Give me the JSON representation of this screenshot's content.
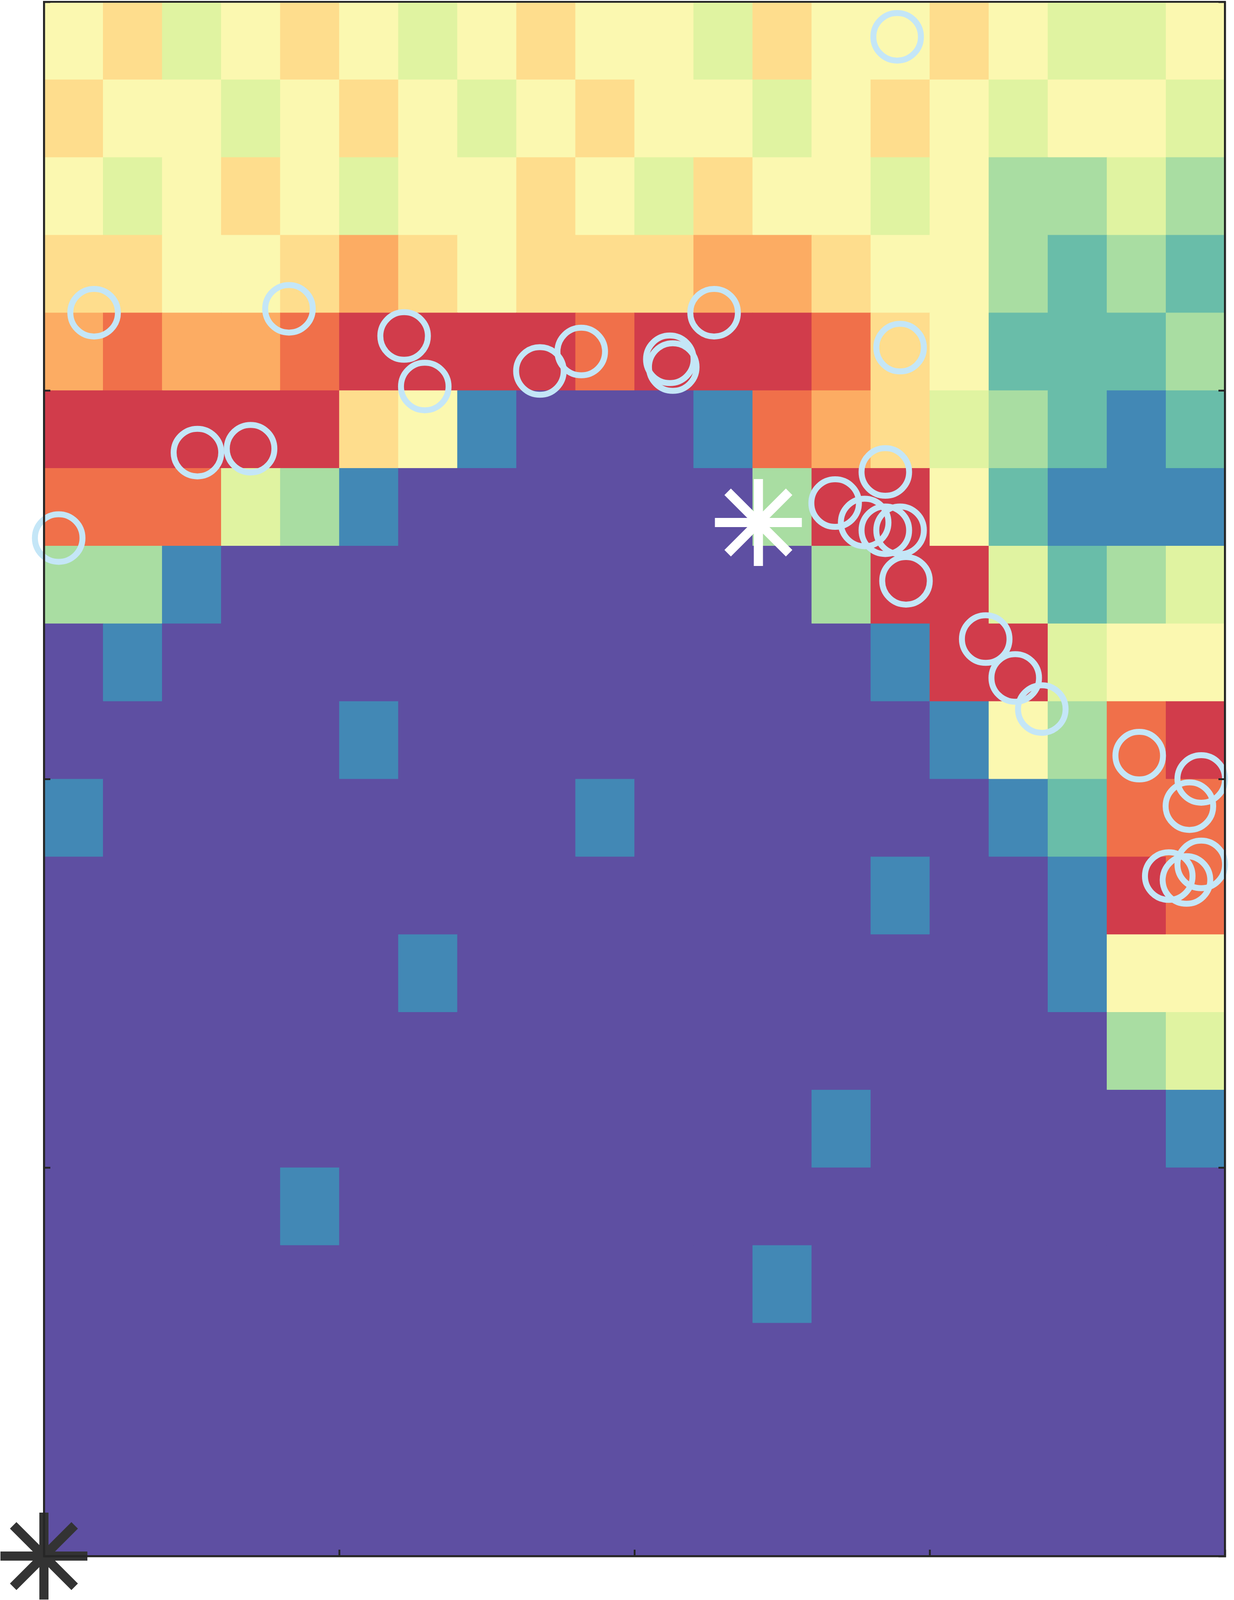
{
  "chart_data": {
    "type": "heatmap",
    "xlim": [
      0,
      4
    ],
    "ylim": [
      0,
      4
    ],
    "xticks": [
      1,
      2,
      3
    ],
    "yticks": [
      1,
      2,
      3
    ],
    "tick_labels": false,
    "zlim": [
      0,
      1
    ],
    "cell_x": [
      0.1,
      0.3,
      0.5,
      0.7,
      0.9,
      1.1,
      1.3,
      1.5,
      1.7,
      1.9,
      2.1,
      2.3,
      2.5,
      2.7,
      2.9,
      3.1,
      3.3,
      3.5,
      3.7,
      3.9
    ],
    "cell_y": [
      3.9,
      3.7,
      3.5,
      3.3,
      3.1,
      2.9,
      2.7,
      2.5,
      2.3,
      2.1,
      1.9,
      1.7,
      1.5,
      1.3,
      1.1,
      0.9,
      0.7,
      0.5,
      0.3,
      0.1
    ],
    "z": [
      [
        0.5,
        0.6,
        0.4,
        0.5,
        0.6,
        0.5,
        0.4,
        0.5,
        0.6,
        0.5,
        0.5,
        0.4,
        0.6,
        0.5,
        0.5,
        0.6,
        0.5,
        0.4,
        0.4,
        0.5
      ],
      [
        0.6,
        0.5,
        0.5,
        0.4,
        0.5,
        0.6,
        0.5,
        0.4,
        0.5,
        0.6,
        0.5,
        0.5,
        0.4,
        0.5,
        0.6,
        0.5,
        0.4,
        0.5,
        0.5,
        0.4
      ],
      [
        0.5,
        0.4,
        0.5,
        0.6,
        0.5,
        0.4,
        0.5,
        0.5,
        0.6,
        0.5,
        0.4,
        0.6,
        0.5,
        0.5,
        0.4,
        0.5,
        0.3,
        0.3,
        0.4,
        0.3
      ],
      [
        0.6,
        0.6,
        0.5,
        0.5,
        0.6,
        0.7,
        0.6,
        0.5,
        0.6,
        0.6,
        0.6,
        0.7,
        0.7,
        0.6,
        0.5,
        0.5,
        0.3,
        0.2,
        0.3,
        0.2
      ],
      [
        0.7,
        0.8,
        0.7,
        0.7,
        0.8,
        0.9,
        0.9,
        0.9,
        0.9,
        0.8,
        0.9,
        0.9,
        0.9,
        0.8,
        0.6,
        0.5,
        0.2,
        0.2,
        0.2,
        0.3
      ],
      [
        0.9,
        0.9,
        0.9,
        0.9,
        0.9,
        0.6,
        0.5,
        0.1,
        0.0,
        0.0,
        0.0,
        0.1,
        0.8,
        0.7,
        0.6,
        0.4,
        0.3,
        0.2,
        0.1,
        0.2
      ],
      [
        0.8,
        0.8,
        0.8,
        0.4,
        0.3,
        0.1,
        0.0,
        0.0,
        0.0,
        0.0,
        0.0,
        0.0,
        0.3,
        0.9,
        0.9,
        0.5,
        0.2,
        0.1,
        0.1,
        0.1
      ],
      [
        0.3,
        0.3,
        0.1,
        0.0,
        0.0,
        0.0,
        0.0,
        0.0,
        0.0,
        0.0,
        0.0,
        0.0,
        0.0,
        0.3,
        0.9,
        0.9,
        0.4,
        0.2,
        0.3,
        0.4
      ],
      [
        0.0,
        0.1,
        0.0,
        0.0,
        0.0,
        0.0,
        0.0,
        0.0,
        0.0,
        0.0,
        0.0,
        0.0,
        0.0,
        0.0,
        0.1,
        0.9,
        0.9,
        0.4,
        0.5,
        0.5
      ],
      [
        0.0,
        0.0,
        0.0,
        0.0,
        0.0,
        0.1,
        0.0,
        0.0,
        0.0,
        0.0,
        0.0,
        0.0,
        0.0,
        0.0,
        0.0,
        0.1,
        0.5,
        0.3,
        0.8,
        0.9
      ],
      [
        0.1,
        0.0,
        0.0,
        0.0,
        0.0,
        0.0,
        0.0,
        0.0,
        0.0,
        0.1,
        0.0,
        0.0,
        0.0,
        0.0,
        0.0,
        0.0,
        0.1,
        0.2,
        0.8,
        0.8
      ],
      [
        0.0,
        0.0,
        0.0,
        0.0,
        0.0,
        0.0,
        0.0,
        0.0,
        0.0,
        0.0,
        0.0,
        0.0,
        0.0,
        0.0,
        0.1,
        0.0,
        0.0,
        0.1,
        0.9,
        0.8
      ],
      [
        0.0,
        0.0,
        0.0,
        0.0,
        0.0,
        0.0,
        0.1,
        0.0,
        0.0,
        0.0,
        0.0,
        0.0,
        0.0,
        0.0,
        0.0,
        0.0,
        0.0,
        0.1,
        0.5,
        0.5
      ],
      [
        0.0,
        0.0,
        0.0,
        0.0,
        0.0,
        0.0,
        0.0,
        0.0,
        0.0,
        0.0,
        0.0,
        0.0,
        0.0,
        0.0,
        0.0,
        0.0,
        0.0,
        0.0,
        0.3,
        0.4
      ],
      [
        0.0,
        0.0,
        0.0,
        0.0,
        0.0,
        0.0,
        0.0,
        0.0,
        0.0,
        0.0,
        0.0,
        0.0,
        0.0,
        0.1,
        0.0,
        0.0,
        0.0,
        0.0,
        0.0,
        0.1
      ],
      [
        0.0,
        0.0,
        0.0,
        0.0,
        0.1,
        0.0,
        0.0,
        0.0,
        0.0,
        0.0,
        0.0,
        0.0,
        0.0,
        0.0,
        0.0,
        0.0,
        0.0,
        0.0,
        0.0,
        0.0
      ],
      [
        0.0,
        0.0,
        0.0,
        0.0,
        0.0,
        0.0,
        0.0,
        0.0,
        0.0,
        0.0,
        0.0,
        0.0,
        0.1,
        0.0,
        0.0,
        0.0,
        0.0,
        0.0,
        0.0,
        0.0
      ],
      [
        0.0,
        0.0,
        0.0,
        0.0,
        0.0,
        0.0,
        0.0,
        0.0,
        0.0,
        0.0,
        0.0,
        0.0,
        0.0,
        0.0,
        0.0,
        0.0,
        0.0,
        0.0,
        0.0,
        0.0
      ],
      [
        0.0,
        0.0,
        0.0,
        0.0,
        0.0,
        0.0,
        0.0,
        0.0,
        0.0,
        0.0,
        0.0,
        0.0,
        0.0,
        0.0,
        0.0,
        0.0,
        0.0,
        0.0,
        0.0,
        0.0
      ],
      [
        0.0,
        0.0,
        0.0,
        0.0,
        0.0,
        0.0,
        0.0,
        0.0,
        0.0,
        0.0,
        0.0,
        0.0,
        0.0,
        0.0,
        0.0,
        0.0,
        0.0,
        0.0,
        0.0,
        0.0
      ]
    ],
    "series": [
      {
        "type": "scatter",
        "marker": "circle",
        "color": "#c4e6f7",
        "x": [
          2.89,
          0.17,
          0.83,
          1.22,
          1.29,
          1.68,
          1.82,
          2.12,
          2.13,
          2.27,
          2.9,
          0.52,
          0.7,
          0.05,
          2.68,
          2.85,
          2.78,
          2.85,
          2.9,
          2.92,
          3.19,
          3.29,
          3.38,
          3.71,
          3.92,
          3.88,
          3.92,
          3.81,
          3.87
        ],
        "y": [
          3.91,
          3.2,
          3.21,
          3.14,
          3.01,
          3.05,
          3.1,
          3.08,
          3.06,
          3.2,
          3.11,
          2.84,
          2.85,
          2.62,
          2.71,
          2.79,
          2.66,
          2.64,
          2.64,
          2.51,
          2.36,
          2.26,
          2.18,
          2.06,
          2.0,
          1.93,
          1.78,
          1.75,
          1.74
        ]
      },
      {
        "type": "scatter",
        "marker": "asterisk",
        "colors": [
          "#ffffff",
          "#333333"
        ],
        "x": [
          2.42,
          0
        ],
        "y": [
          2.66,
          0
        ]
      }
    ]
  }
}
